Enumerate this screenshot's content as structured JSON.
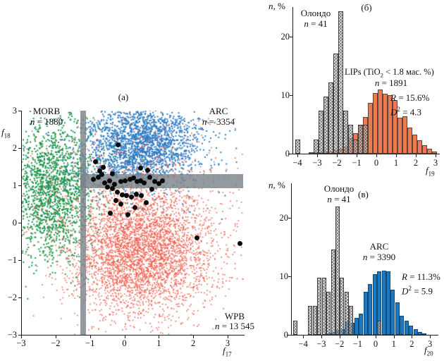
{
  "colors": {
    "morb_green": "#169447",
    "arc_blue": "#2b7bc4",
    "wpb_red": "#ef604f",
    "olondo_black": "#0a0a0a",
    "band_gray": "rgba(120,130,136,0.8)",
    "hist_orange": "#ef7a51",
    "hist_blue": "#1d78c0",
    "axis": "#1a1a1a"
  },
  "chart_data": [
    {
      "type": "scatter",
      "title": "(а)",
      "xlabel_base": "f",
      "xlabel_sub": "17",
      "ylabel_base": "f",
      "ylabel_sub": "18",
      "xlim": [
        -3,
        3.45
      ],
      "ylim": [
        -3,
        3
      ],
      "x_ticks": [
        -3,
        -2,
        -1,
        0,
        1,
        2,
        3
      ],
      "y_ticks": [
        3,
        2,
        1,
        0,
        -1,
        -2,
        -3
      ],
      "grid": false,
      "labels": {
        "morb": {
          "name": "MORB",
          "n_base": "n",
          "n_rest": " = 1880"
        },
        "arc": {
          "name": "ARC",
          "n_base": "n",
          "n_rest": " = 3354"
        },
        "wpb": {
          "name": "WPB",
          "n_base": "n",
          "n_rest": " = 13 545"
        }
      },
      "bands": {
        "vertical_x": [
          -1.28,
          -1.12
        ],
        "horizontal_y": [
          0.93,
          1.31
        ],
        "horizontal_x_start": -1.28
      },
      "series": [
        {
          "name": "MORB",
          "n": 1880,
          "color_key": "morb_green",
          "dot": 2,
          "clusters": [
            {
              "center": [
                -2.1,
                0.85
              ],
              "sigma": [
                0.6,
                0.95
              ],
              "render": 1600
            },
            {
              "center": [
                -1.2,
                1.2
              ],
              "sigma": [
                1.0,
                0.9
              ],
              "render": 130
            }
          ]
        },
        {
          "name": "ARC",
          "n": 3354,
          "color_key": "arc_blue",
          "dot": 2,
          "clusters": [
            {
              "center": [
                0.5,
                2.1
              ],
              "sigma": [
                0.85,
                0.55
              ],
              "render": 2000
            },
            {
              "center": [
                0.3,
                1.5
              ],
              "sigma": [
                1.3,
                0.75
              ],
              "render": 220
            }
          ]
        },
        {
          "name": "WPB",
          "n": 13545,
          "color_key": "wpb_red",
          "dot": 1.6,
          "clusters": [
            {
              "center": [
                0.5,
                -0.8
              ],
              "sigma": [
                1.0,
                0.85
              ],
              "render": 3800
            },
            {
              "center": [
                0.2,
                0.7
              ],
              "sigma": [
                1.7,
                1.3
              ],
              "render": 900
            }
          ]
        },
        {
          "name": "Олондо",
          "n": 41,
          "color_key": "olondo_black",
          "points": [
            [
              -0.18,
              2.08
            ],
            [
              -0.85,
              1.63
            ],
            [
              -0.61,
              1.48
            ],
            [
              -0.71,
              1.38
            ],
            [
              -0.34,
              1.31
            ],
            [
              0.67,
              1.4
            ],
            [
              0.48,
              1.46
            ],
            [
              -0.91,
              1.16
            ],
            [
              -0.75,
              1.22
            ],
            [
              -0.58,
              1.06
            ],
            [
              -0.44,
              1.12
            ],
            [
              -0.28,
              1.03
            ],
            [
              -0.1,
              1.1
            ],
            [
              0.03,
              1.12
            ],
            [
              0.17,
              1.16
            ],
            [
              0.27,
              1.19
            ],
            [
              0.37,
              1.1
            ],
            [
              0.48,
              1.12
            ],
            [
              0.58,
              1.06
            ],
            [
              0.74,
              1.21
            ],
            [
              0.88,
              1.1
            ],
            [
              1.0,
              1.05
            ],
            [
              1.1,
              1.12
            ],
            [
              -0.34,
              0.91
            ],
            [
              -0.2,
              0.82
            ],
            [
              -0.07,
              0.74
            ],
            [
              0.07,
              0.72
            ],
            [
              0.21,
              0.69
            ],
            [
              0.35,
              0.77
            ],
            [
              0.5,
              0.72
            ],
            [
              0.64,
              0.54
            ],
            [
              -0.24,
              0.59
            ],
            [
              -0.1,
              0.5
            ],
            [
              0.11,
              0.22
            ],
            [
              -0.4,
              0.25
            ],
            [
              0.3,
              0.4
            ],
            [
              -0.5,
              0.95
            ],
            [
              0.8,
              0.9
            ],
            [
              -0.65,
              1.3
            ],
            [
              2.1,
              -0.4
            ],
            [
              3.35,
              -0.55
            ]
          ]
        }
      ]
    },
    {
      "type": "histogram",
      "title": "(б)",
      "ylabel_base": "n",
      "ylabel_rest": ", %",
      "xlabel_base": "f",
      "xlabel_sub": "19",
      "xlim": [
        -4.6,
        3.2
      ],
      "ylim": [
        0,
        25
      ],
      "x_ticks": [
        -4,
        -3,
        -2,
        -1,
        0,
        1,
        2,
        3
      ],
      "y_ticks": [
        0,
        10,
        20
      ],
      "bin_width": 0.25,
      "labels": {
        "olondo": {
          "name": "Олондо",
          "n_base": "n",
          "n_rest": " = 41"
        },
        "lips_pre": "LIPs (TiO",
        "lips_sub": "2",
        "lips_post": " < 1.8 мас. %)",
        "lips_n_base": "n",
        "lips_n_rest": " = 1891",
        "r_base": "R",
        "r_rest": " = 15.6%",
        "d_base": "D",
        "d_sup": "2",
        "d_rest": " = 4.3"
      },
      "series": [
        {
          "name": "LIPs (TiO2 < 1.8 мас. %)",
          "n": 1891,
          "style": "orange",
          "centers": [
            -3.3,
            -3.05,
            -2.8,
            -2.55,
            -2.3,
            -2.05,
            -1.8,
            -1.55,
            -1.3,
            -1.05,
            -0.8,
            -0.55,
            -0.3,
            -0.05,
            0.2,
            0.45,
            0.7,
            0.95,
            1.2,
            1.45,
            1.7,
            1.95,
            2.2,
            2.45,
            2.7,
            2.95
          ],
          "values": [
            0.2,
            0.3,
            0.3,
            0.4,
            0.4,
            0.6,
            0.8,
            1.2,
            2.6,
            3.5,
            4.8,
            6.3,
            8.7,
            10.4,
            11.0,
            10.2,
            10.0,
            9.2,
            6.1,
            6.4,
            4.5,
            3.2,
            2.3,
            1.5,
            0.9,
            0.4
          ]
        },
        {
          "name": "Олондо",
          "n": 41,
          "style": "hatched",
          "centers": [
            -4.0,
            -3.05,
            -2.8,
            -2.55,
            -2.3,
            -2.05,
            -1.8,
            -1.55,
            -1.3,
            -1.05,
            -0.8,
            -0.55
          ],
          "values": [
            2.44,
            2.44,
            7.32,
            9.76,
            12.2,
            17.07,
            24.39,
            7.32,
            4.88,
            2.44,
            4.88,
            4.88
          ]
        }
      ]
    },
    {
      "type": "histogram",
      "title": "(в)",
      "ylabel_base": "n",
      "ylabel_rest": ", %",
      "xlabel_base": "f",
      "xlabel_sub": "20",
      "xlim": [
        -4.7,
        3.3
      ],
      "ylim": [
        0,
        25
      ],
      "x_ticks": [
        -4,
        -3,
        -2,
        -1,
        0,
        1,
        2,
        3
      ],
      "y_ticks": [
        0,
        10,
        20
      ],
      "bin_width": 0.25,
      "labels": {
        "olondo": {
          "name": "Олондо",
          "n_base": "n",
          "n_rest": " = 41"
        },
        "arc": {
          "name": "ARC",
          "n_base": "n",
          "n_rest": " = 3390"
        },
        "r_base": "R",
        "r_rest": " = 11.3%",
        "d_base": "D",
        "d_sup": "2",
        "d_rest": " = 5.9"
      },
      "series": [
        {
          "name": "ARC",
          "n": 3390,
          "style": "blue",
          "centers": [
            -2.55,
            -2.3,
            -2.05,
            -1.8,
            -1.55,
            -1.3,
            -1.05,
            -0.8,
            -0.55,
            -0.3,
            -0.05,
            0.2,
            0.45,
            0.7,
            0.95,
            1.2,
            1.45,
            1.7,
            1.95,
            2.2,
            2.45,
            2.7
          ],
          "values": [
            0.3,
            0.5,
            0.8,
            1.0,
            2.3,
            2.0,
            2.9,
            3.6,
            7.3,
            8.7,
            10.4,
            10.9,
            11.0,
            10.9,
            7.7,
            5.5,
            3.3,
            2.4,
            1.6,
            1.0,
            0.5,
            0.2
          ]
        },
        {
          "name": "Олондо",
          "n": 41,
          "style": "hatched",
          "centers": [
            -4.45,
            -3.6,
            -3.35,
            -3.1,
            -2.85,
            -2.6,
            -2.35,
            -2.1,
            -1.85,
            -1.6,
            -1.35,
            0.18
          ],
          "values": [
            2.44,
            4.88,
            4.88,
            9.76,
            9.76,
            7.32,
            14.63,
            21.95,
            9.76,
            7.32,
            4.88,
            2.44
          ]
        }
      ]
    }
  ]
}
